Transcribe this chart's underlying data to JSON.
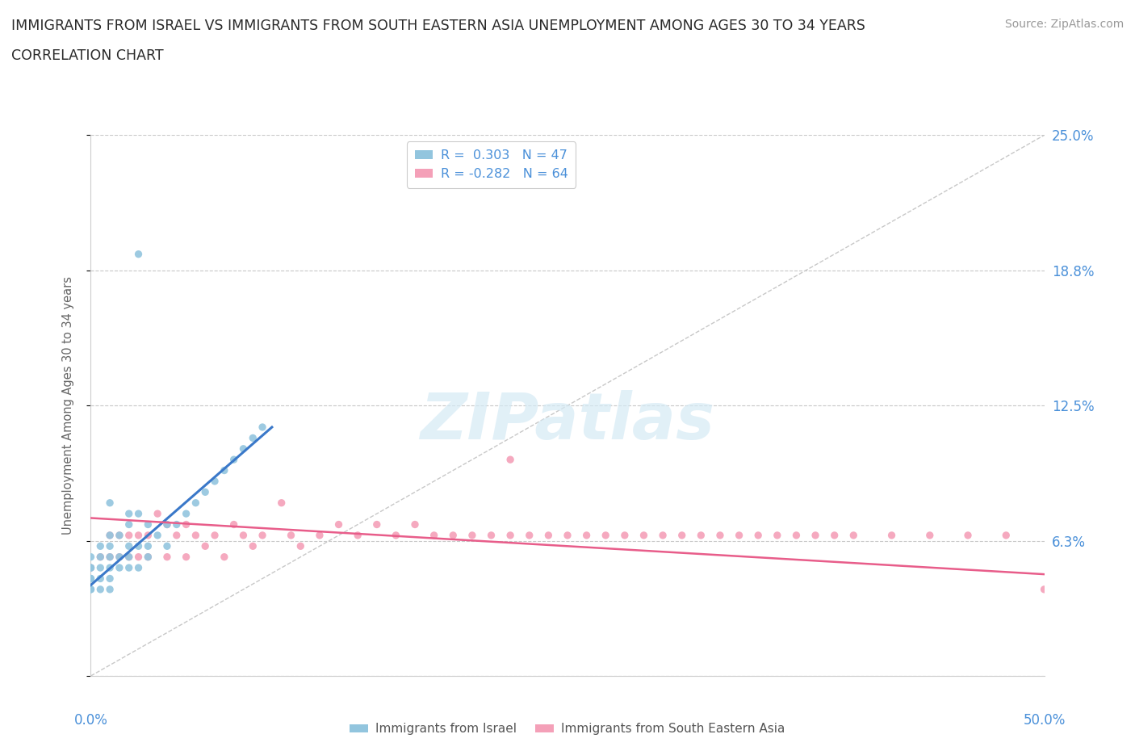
{
  "title_line1": "IMMIGRANTS FROM ISRAEL VS IMMIGRANTS FROM SOUTH EASTERN ASIA UNEMPLOYMENT AMONG AGES 30 TO 34 YEARS",
  "title_line2": "CORRELATION CHART",
  "source": "Source: ZipAtlas.com",
  "ylabel": "Unemployment Among Ages 30 to 34 years",
  "xmin": 0.0,
  "xmax": 0.5,
  "ymin": 0.0,
  "ymax": 0.25,
  "yticks": [
    0.0,
    0.0625,
    0.125,
    0.1875,
    0.25
  ],
  "ytick_labels": [
    "",
    "6.3%",
    "12.5%",
    "18.8%",
    "25.0%"
  ],
  "xtick_labels": [
    "0.0%",
    "50.0%"
  ],
  "blue_color": "#92c5de",
  "pink_color": "#f4a0b8",
  "blue_line_color": "#3a78c9",
  "pink_line_color": "#e85d8a",
  "diagonal_color": "#c8c8c8",
  "grid_color": "#c8c8c8",
  "label_color": "#4a90d9",
  "ylabel_color": "#666666",
  "watermark_color": "#d5eaf5",
  "blue_label": "Immigrants from Israel",
  "pink_label": "Immigrants from South Eastern Asia",
  "legend_blue": "R =  0.303   N = 47",
  "legend_pink": "R = -0.282   N = 64",
  "blue_x": [
    0.0,
    0.0,
    0.0,
    0.0,
    0.0,
    0.0,
    0.0,
    0.005,
    0.005,
    0.005,
    0.005,
    0.005,
    0.01,
    0.01,
    0.01,
    0.01,
    0.01,
    0.01,
    0.01,
    0.015,
    0.015,
    0.015,
    0.02,
    0.02,
    0.02,
    0.02,
    0.02,
    0.025,
    0.025,
    0.025,
    0.03,
    0.03,
    0.03,
    0.035,
    0.04,
    0.04,
    0.045,
    0.05,
    0.055,
    0.06,
    0.065,
    0.07,
    0.075,
    0.08,
    0.085,
    0.09,
    0.025
  ],
  "blue_y": [
    0.04,
    0.04,
    0.045,
    0.045,
    0.05,
    0.05,
    0.055,
    0.04,
    0.045,
    0.05,
    0.055,
    0.06,
    0.04,
    0.045,
    0.05,
    0.055,
    0.06,
    0.065,
    0.08,
    0.05,
    0.055,
    0.065,
    0.05,
    0.055,
    0.06,
    0.07,
    0.075,
    0.05,
    0.06,
    0.075,
    0.055,
    0.06,
    0.07,
    0.065,
    0.06,
    0.07,
    0.07,
    0.075,
    0.08,
    0.085,
    0.09,
    0.095,
    0.1,
    0.105,
    0.11,
    0.115,
    0.195
  ],
  "pink_x": [
    0.0,
    0.005,
    0.01,
    0.01,
    0.015,
    0.015,
    0.02,
    0.02,
    0.025,
    0.025,
    0.03,
    0.03,
    0.035,
    0.04,
    0.04,
    0.045,
    0.05,
    0.05,
    0.055,
    0.06,
    0.065,
    0.07,
    0.075,
    0.08,
    0.085,
    0.09,
    0.1,
    0.105,
    0.11,
    0.12,
    0.13,
    0.14,
    0.15,
    0.16,
    0.17,
    0.18,
    0.19,
    0.2,
    0.21,
    0.22,
    0.23,
    0.24,
    0.25,
    0.26,
    0.27,
    0.28,
    0.29,
    0.3,
    0.31,
    0.32,
    0.33,
    0.34,
    0.35,
    0.36,
    0.37,
    0.38,
    0.39,
    0.4,
    0.42,
    0.44,
    0.46,
    0.48,
    0.5,
    0.22
  ],
  "pink_y": [
    0.05,
    0.055,
    0.055,
    0.065,
    0.055,
    0.065,
    0.055,
    0.065,
    0.055,
    0.065,
    0.055,
    0.065,
    0.075,
    0.055,
    0.07,
    0.065,
    0.055,
    0.07,
    0.065,
    0.06,
    0.065,
    0.055,
    0.07,
    0.065,
    0.06,
    0.065,
    0.08,
    0.065,
    0.06,
    0.065,
    0.07,
    0.065,
    0.07,
    0.065,
    0.07,
    0.065,
    0.065,
    0.065,
    0.065,
    0.065,
    0.065,
    0.065,
    0.065,
    0.065,
    0.065,
    0.065,
    0.065,
    0.065,
    0.065,
    0.065,
    0.065,
    0.065,
    0.065,
    0.065,
    0.065,
    0.065,
    0.065,
    0.065,
    0.065,
    0.065,
    0.065,
    0.065,
    0.04,
    0.1
  ],
  "blue_trend_x": [
    0.0,
    0.095
  ],
  "blue_trend_y": [
    0.042,
    0.115
  ],
  "pink_trend_x": [
    0.0,
    0.5
  ],
  "pink_trend_y": [
    0.073,
    0.047
  ]
}
